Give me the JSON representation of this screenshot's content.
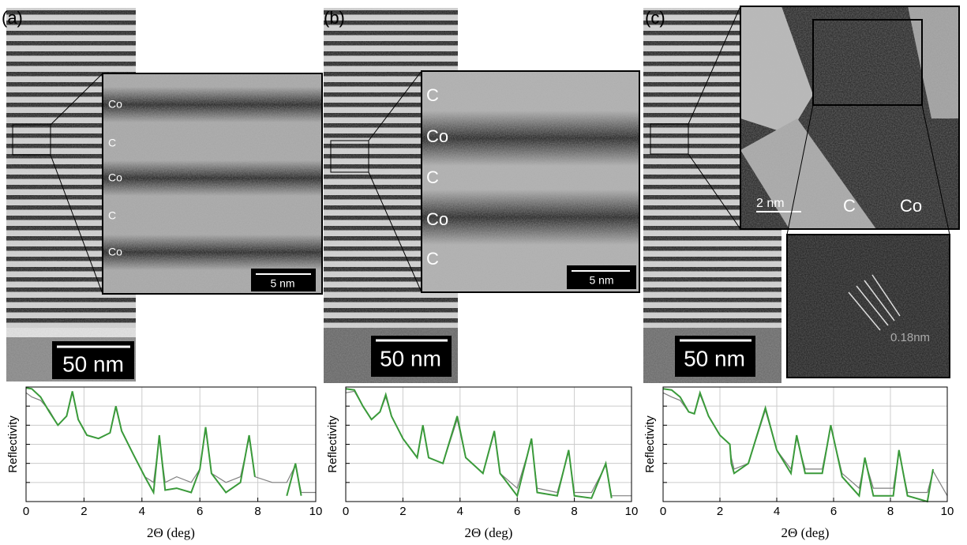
{
  "panels": [
    {
      "label": "(a)",
      "layer_labels": [
        "Co",
        "C",
        "Co",
        "C",
        "Co"
      ],
      "inset_scale": "5 nm",
      "scale": "50 nm"
    },
    {
      "label": "(b)",
      "layer_labels": [
        "C",
        "Co",
        "C",
        "Co",
        "C"
      ],
      "inset_scale": "5 nm",
      "scale": "50 nm"
    },
    {
      "label": "(c)",
      "scale": "50 nm",
      "inset_scale": "2 nm",
      "inset_labels": [
        "C",
        "Co"
      ],
      "spacing": "0.18nm"
    }
  ],
  "chart_data": [
    {
      "type": "line",
      "xlabel": "2Θ  (deg)",
      "ylabel": "Reflectivity",
      "xlim": [
        0,
        10
      ],
      "xticks": [
        0,
        2,
        4,
        6,
        8,
        10
      ],
      "ylim": [
        1e-06,
        1
      ],
      "yticks": [
        1e-06,
        1e-05,
        0.0001,
        0.001,
        0.01,
        0.1,
        1
      ],
      "log_y": true,
      "grid": true,
      "x": [
        0,
        0.2,
        0.5,
        0.8,
        1.1,
        1.4,
        1.6,
        1.8,
        2.1,
        2.5,
        2.9,
        3.1,
        3.3,
        3.7,
        4.1,
        4.4,
        4.6,
        4.8,
        5.2,
        5.7,
        6.0,
        6.2,
        6.4,
        6.9,
        7.4,
        7.7,
        7.9,
        8.5,
        9.0,
        9.3,
        9.5,
        10
      ],
      "series": [
        {
          "color": "#808080",
          "values": [
            0.5,
            0.3,
            0.2,
            0.06,
            0.01,
            0.03,
            0.5,
            0.02,
            0.003,
            0.002,
            0.004,
            0.08,
            0.005,
            0.0003,
            2e-05,
            1e-05,
            0.002,
            1e-05,
            2e-05,
            1e-05,
            5e-05,
            0.006,
            3e-05,
            1e-05,
            2e-05,
            0.002,
            2e-05,
            1e-05,
            1e-05,
            8e-05,
            3e-06,
            3e-06
          ]
        },
        {
          "color": "#3a9a3a",
          "values": [
            0.9,
            0.8,
            0.3,
            0.05,
            0.01,
            0.03,
            0.6,
            0.02,
            0.003,
            0.002,
            0.004,
            0.1,
            0.005,
            0.0003,
            2e-05,
            3e-06,
            0.003,
            4e-06,
            5e-06,
            3e-06,
            5e-05,
            0.008,
            3e-05,
            3e-06,
            1e-05,
            0.003,
            2e-05,
            null,
            2e-06,
            0.0001,
            2e-06,
            null
          ]
        }
      ]
    },
    {
      "type": "line",
      "xlabel": "2Θ  (deg)",
      "ylabel": "Reflectivity",
      "xlim": [
        0,
        10
      ],
      "xticks": [
        0,
        2,
        4,
        6,
        8,
        10
      ],
      "ylim": [
        1e-06,
        1
      ],
      "yticks": [
        1e-06,
        1e-05,
        0.0001,
        0.001,
        0.01,
        0.1,
        1
      ],
      "log_y": true,
      "grid": true,
      "x": [
        0,
        0.3,
        0.6,
        0.9,
        1.2,
        1.4,
        1.6,
        2.0,
        2.5,
        2.7,
        2.9,
        3.4,
        3.9,
        4.2,
        4.8,
        5.2,
        5.4,
        6.0,
        6.5,
        6.7,
        7.4,
        7.8,
        8.0,
        8.6,
        9.1,
        9.3,
        10
      ],
      "series": [
        {
          "color": "#808080",
          "values": [
            0.5,
            0.6,
            0.1,
            0.02,
            0.05,
            0.3,
            0.03,
            0.002,
            0.0002,
            0.008,
            0.0002,
            0.0001,
            0.02,
            0.0002,
            3e-05,
            0.004,
            3e-05,
            5e-06,
            0.0015,
            5e-06,
            3e-06,
            0.0004,
            3e-06,
            3e-06,
            8e-05,
            2e-06,
            2e-06
          ]
        },
        {
          "color": "#3a9a3a",
          "values": [
            0.8,
            0.7,
            0.1,
            0.02,
            0.05,
            0.4,
            0.03,
            0.002,
            0.0002,
            0.01,
            0.0002,
            0.0001,
            0.03,
            0.0002,
            3e-05,
            0.005,
            3e-05,
            2e-06,
            0.002,
            3e-06,
            2e-06,
            0.0005,
            2e-06,
            1.5e-06,
            0.0001,
            1.5e-06,
            null
          ]
        }
      ]
    },
    {
      "type": "line",
      "xlabel": "2Θ  (deg)",
      "ylabel": "Reflectivity",
      "xlim": [
        0,
        10
      ],
      "xticks": [
        0,
        2,
        4,
        6,
        8,
        10
      ],
      "ylim": [
        1e-06,
        1
      ],
      "yticks": [
        1e-06,
        1e-05,
        0.0001,
        0.001,
        0.01,
        0.1,
        1
      ],
      "log_y": true,
      "grid": true,
      "x": [
        0,
        0.3,
        0.6,
        0.9,
        1.1,
        1.3,
        1.6,
        2.0,
        2.35,
        2.4,
        2.5,
        3.0,
        3.6,
        4.0,
        4.5,
        4.7,
        5.0,
        5.6,
        5.9,
        6.3,
        6.9,
        7.1,
        7.4,
        8.1,
        8.3,
        8.6,
        9.3,
        9.5,
        10
      ],
      "series": [
        {
          "color": "#808080",
          "values": [
            0.5,
            0.3,
            0.2,
            0.05,
            0.04,
            0.4,
            0.03,
            0.003,
            0.001,
            0.0002,
            5e-05,
            0.0001,
            0.06,
            0.0005,
            5e-05,
            0.002,
            5e-05,
            5e-05,
            0.008,
            3e-05,
            5e-06,
            0.00015,
            5e-06,
            5e-06,
            0.0004,
            3e-06,
            3e-06,
            4e-05,
            2e-06
          ]
        },
        {
          "color": "#3a9a3a",
          "values": [
            0.8,
            0.7,
            0.3,
            0.05,
            0.04,
            0.5,
            0.03,
            0.003,
            0.001,
            0.0001,
            3e-05,
            0.0001,
            0.08,
            0.0005,
            3e-05,
            0.003,
            3e-05,
            3e-05,
            0.01,
            2e-05,
            2e-06,
            0.0002,
            2e-06,
            2e-06,
            0.0005,
            2e-06,
            1e-06,
            5e-05,
            null
          ]
        }
      ]
    }
  ]
}
